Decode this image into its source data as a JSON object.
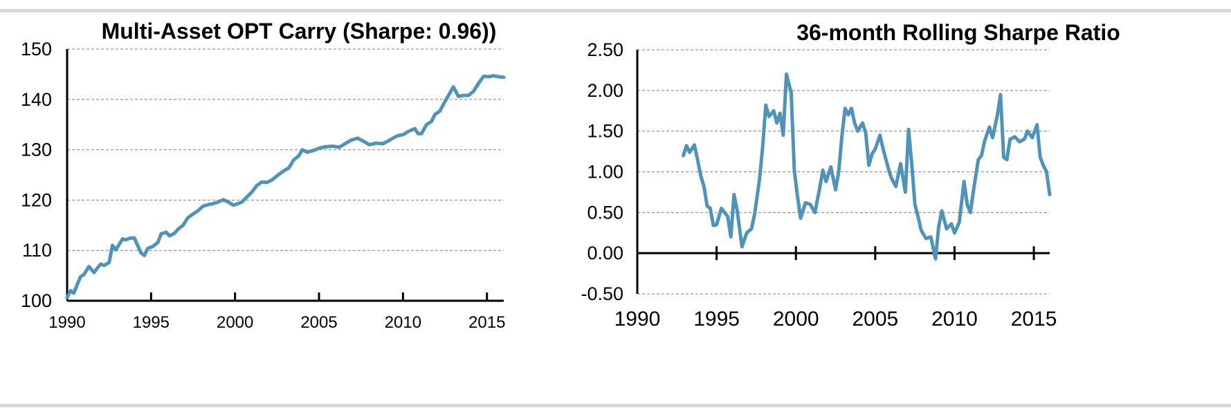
{
  "colors": {
    "series": "#4f94b8",
    "grid": "#7f7f7f",
    "rule": "#d9d9d9"
  },
  "chart_data": [
    {
      "type": "line",
      "title": "Multi-Asset OPT Carry (Sharpe:  0.96))",
      "xlabel": "",
      "ylabel": "",
      "xlim": [
        1990,
        2016
      ],
      "ylim": [
        100,
        150
      ],
      "x_ticks": [
        "1990",
        "1995",
        "2000",
        "2005",
        "2010",
        "2015"
      ],
      "y_ticks": [
        "100",
        "110",
        "120",
        "130",
        "140",
        "150"
      ],
      "grid": true,
      "series": [
        {
          "x": [
            1990.0,
            1990.2,
            1990.4,
            1990.6,
            1990.8,
            1991.0,
            1991.3,
            1991.5,
            1991.6,
            1991.8,
            1992.0,
            1992.2,
            1992.5,
            1992.7,
            1992.9,
            1993.1,
            1993.3,
            1993.5,
            1993.7,
            1994.0,
            1994.2,
            1994.4,
            1994.6,
            1994.8,
            1995.1,
            1995.4,
            1995.6,
            1995.9,
            1996.1,
            1996.4,
            1996.6,
            1996.9,
            1997.2,
            1997.4,
            1997.8,
            1998.1,
            1998.4,
            1998.7,
            1999.0,
            1999.3,
            1999.6,
            1999.9,
            2000.1,
            2000.4,
            2000.7,
            2001.0,
            2001.3,
            2001.6,
            2001.9,
            2002.2,
            2002.6,
            2002.9,
            2003.2,
            2003.5,
            2003.8,
            2004.0,
            2004.3,
            2004.7,
            2005.0,
            2005.4,
            2005.8,
            2006.2,
            2006.6,
            2006.9,
            2007.3,
            2007.7,
            2008.0,
            2008.4,
            2008.8,
            2009.1,
            2009.4,
            2009.7,
            2010.0,
            2010.3,
            2010.7,
            2010.9,
            2011.1,
            2011.4,
            2011.7,
            2011.9,
            2012.2,
            2012.5,
            2012.8,
            2013.0,
            2013.3,
            2013.6,
            2013.9,
            2014.2,
            2014.5,
            2014.8,
            2015.1,
            2015.4,
            2015.7,
            2016.0
          ],
          "values": [
            100.6,
            102.0,
            101.5,
            103.2,
            104.8,
            105.2,
            106.8,
            106.0,
            105.6,
            106.5,
            107.3,
            107.0,
            107.6,
            111.0,
            110.1,
            111.2,
            112.3,
            112.1,
            112.4,
            112.5,
            111.0,
            109.5,
            109.0,
            110.4,
            110.8,
            111.6,
            113.3,
            113.6,
            112.9,
            113.4,
            114.2,
            115.0,
            116.5,
            117.0,
            117.9,
            118.8,
            119.1,
            119.3,
            119.6,
            120.1,
            119.6,
            119.0,
            119.2,
            119.6,
            120.6,
            121.6,
            122.9,
            123.6,
            123.5,
            124.0,
            125.1,
            125.8,
            126.4,
            128.0,
            128.8,
            130.0,
            129.5,
            129.9,
            130.3,
            130.6,
            130.7,
            130.5,
            131.3,
            131.9,
            132.3,
            131.6,
            131.0,
            131.3,
            131.2,
            131.7,
            132.3,
            132.8,
            133.0,
            133.6,
            134.2,
            133.2,
            133.2,
            135.0,
            135.6,
            137.0,
            137.7,
            139.6,
            141.3,
            142.5,
            140.6,
            140.8,
            140.8,
            141.6,
            143.2,
            144.6,
            144.5,
            144.7,
            144.5,
            144.4
          ]
        }
      ]
    },
    {
      "type": "line",
      "title": "36-month Rolling Sharpe Ratio",
      "xlabel": "",
      "ylabel": "",
      "xlim": [
        1990,
        2016
      ],
      "ylim": [
        -0.5,
        2.5
      ],
      "x_ticks": [
        "1990",
        "1995",
        "2000",
        "2005",
        "2010",
        "2015"
      ],
      "y_ticks": [
        "-0.50",
        "0.00",
        "0.50",
        "1.00",
        "1.50",
        "2.00",
        "2.50"
      ],
      "grid": true,
      "series": [
        {
          "x": [
            1992.9,
            1993.1,
            1993.3,
            1993.6,
            1993.8,
            1994.0,
            1994.2,
            1994.4,
            1994.6,
            1994.8,
            1995.0,
            1995.3,
            1995.5,
            1995.7,
            1995.9,
            1996.1,
            1996.3,
            1996.6,
            1996.9,
            1997.2,
            1997.4,
            1997.7,
            1997.9,
            1998.1,
            1998.3,
            1998.6,
            1998.8,
            1999.0,
            1999.2,
            1999.4,
            1999.7,
            1999.9,
            2000.1,
            2000.3,
            2000.6,
            2000.9,
            2001.2,
            2001.5,
            2001.7,
            2001.9,
            2002.2,
            2002.5,
            2002.7,
            2002.9,
            2003.1,
            2003.3,
            2003.5,
            2003.7,
            2003.9,
            2004.2,
            2004.4,
            2004.6,
            2004.8,
            2005.0,
            2005.3,
            2005.5,
            2005.8,
            2006.0,
            2006.3,
            2006.6,
            2006.9,
            2007.1,
            2007.3,
            2007.5,
            2007.7,
            2007.9,
            2008.2,
            2008.5,
            2008.8,
            2009.0,
            2009.2,
            2009.5,
            2009.8,
            2010.0,
            2010.3,
            2010.6,
            2010.8,
            2011.0,
            2011.2,
            2011.5,
            2011.7,
            2011.9,
            2012.2,
            2012.4,
            2012.7,
            2012.9,
            2013.1,
            2013.3,
            2013.5,
            2013.8,
            2014.1,
            2014.4,
            2014.6,
            2014.9,
            2015.2,
            2015.4,
            2015.6,
            2015.8,
            2016.0
          ],
          "values": [
            1.2,
            1.32,
            1.24,
            1.33,
            1.15,
            0.95,
            0.82,
            0.58,
            0.55,
            0.34,
            0.35,
            0.55,
            0.5,
            0.45,
            0.2,
            0.72,
            0.52,
            0.08,
            0.25,
            0.3,
            0.48,
            0.9,
            1.3,
            1.82,
            1.68,
            1.75,
            1.6,
            1.72,
            1.45,
            2.2,
            1.97,
            1.02,
            0.7,
            0.43,
            0.62,
            0.6,
            0.5,
            0.8,
            1.02,
            0.88,
            1.06,
            0.78,
            1.0,
            1.44,
            1.78,
            1.7,
            1.78,
            1.6,
            1.5,
            1.6,
            1.48,
            1.08,
            1.22,
            1.28,
            1.45,
            1.28,
            1.06,
            0.93,
            0.82,
            1.1,
            0.75,
            1.52,
            1.1,
            0.6,
            0.45,
            0.28,
            0.18,
            0.2,
            -0.07,
            0.32,
            0.52,
            0.3,
            0.36,
            0.25,
            0.38,
            0.88,
            0.6,
            0.5,
            0.78,
            1.15,
            1.2,
            1.38,
            1.55,
            1.42,
            1.7,
            1.95,
            1.18,
            1.15,
            1.4,
            1.43,
            1.37,
            1.4,
            1.5,
            1.42,
            1.58,
            1.18,
            1.08,
            1.0,
            0.72
          ]
        }
      ]
    }
  ]
}
